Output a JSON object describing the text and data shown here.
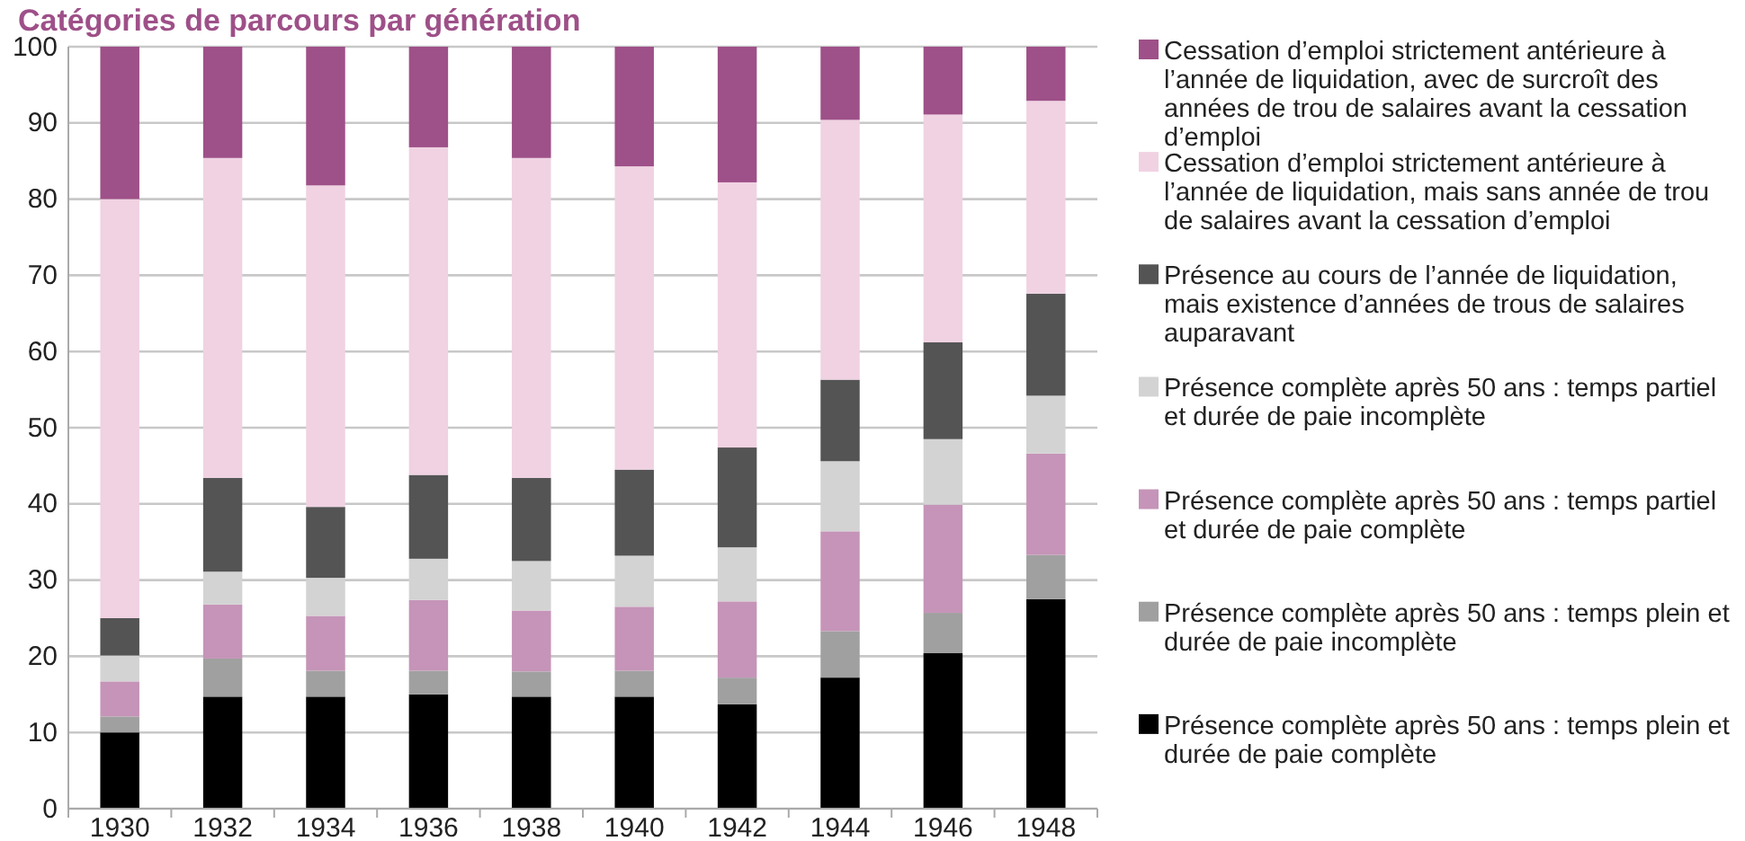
{
  "chart_data": {
    "type": "bar",
    "stacked": true,
    "title": "Catégories de parcours par génération",
    "categories": [
      "1930",
      "1932",
      "1934",
      "1936",
      "1938",
      "1940",
      "1942",
      "1944",
      "1946",
      "1948"
    ],
    "series": [
      {
        "name": "Présence complète après 50 ans : temps plein et durée de paie complète",
        "color": "#000000",
        "values": [
          10.0,
          14.7,
          14.7,
          15.0,
          14.7,
          14.7,
          13.7,
          17.2,
          20.4,
          27.5
        ]
      },
      {
        "name": "Présence complète après 50 ans : temps plein et durée de paie incomplète",
        "color": "#a0a0a0",
        "values": [
          2.1,
          5.0,
          3.4,
          3.1,
          3.3,
          3.4,
          3.5,
          6.1,
          5.3,
          5.8
        ]
      },
      {
        "name": "Présence complète après 50 ans : temps partiel et durée de paie complète",
        "color": "#c594b8",
        "values": [
          4.6,
          7.1,
          7.2,
          9.3,
          8.0,
          8.4,
          10.0,
          13.1,
          14.2,
          13.3
        ]
      },
      {
        "name": "Présence complète après 50 ans : temps partiel et durée de paie incomplète",
        "color": "#d3d3d3",
        "values": [
          3.4,
          4.3,
          5.0,
          5.4,
          6.5,
          6.7,
          7.1,
          9.2,
          8.6,
          7.6
        ]
      },
      {
        "name": "Présence au cours de l’année de liquidation, mais existence d’années de trous de salaires auparavant",
        "color": "#545454",
        "values": [
          4.9,
          12.3,
          9.3,
          11.0,
          10.9,
          11.3,
          13.1,
          10.7,
          12.7,
          13.4
        ]
      },
      {
        "name": "Cessation d’emploi strictement antérieure à l’année de liquidation, mais sans année de trou de salaires avant la cessation d’emploi",
        "color": "#f0d2e2",
        "values": [
          55.0,
          42.0,
          42.2,
          43.0,
          42.0,
          39.8,
          34.8,
          34.1,
          29.9,
          25.3
        ]
      },
      {
        "name": "Cessation d’emploi strictement antérieure à l’année de liquidation, avec de surcroît des années de trou de salaires avant la cessation d’emploi",
        "color": "#9e5088",
        "values": [
          20.0,
          14.6,
          18.2,
          13.2,
          14.6,
          15.7,
          17.8,
          9.6,
          8.9,
          7.1
        ]
      }
    ],
    "ylim": [
      0,
      100
    ],
    "yticks": [
      0,
      10,
      20,
      30,
      40,
      50,
      60,
      70,
      80,
      90,
      100
    ],
    "grid": "y",
    "legend": "right"
  }
}
